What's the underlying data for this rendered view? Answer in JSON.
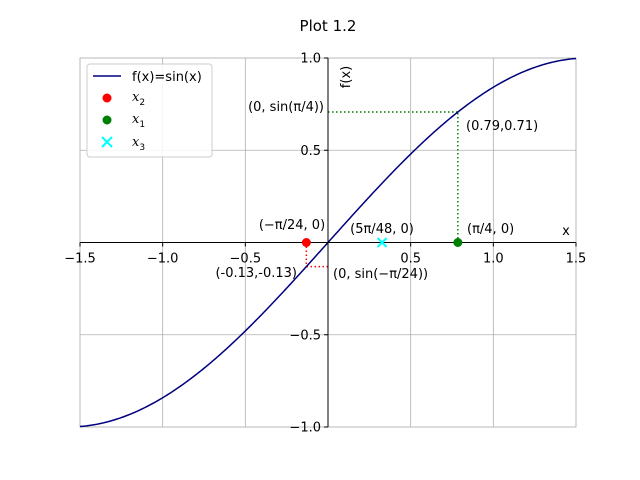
{
  "chart_data": {
    "type": "line",
    "title": "Plot 1.2",
    "xlabel": "x",
    "ylabel": "f(x)",
    "xlim": [
      -1.5,
      1.5
    ],
    "ylim": [
      -1.0,
      1.0
    ],
    "grid": true,
    "spines": "centered",
    "legend_placement": "upper-left",
    "x_ticks": [
      -1.5,
      -1.0,
      -0.5,
      0.5,
      1.0,
      1.5
    ],
    "x_tick_labels": [
      "−1.5",
      "−1.0",
      "−0.5",
      "0.5",
      "1.0",
      "1.5"
    ],
    "y_ticks": [
      -1.0,
      -0.5,
      0.5,
      1.0
    ],
    "y_tick_labels": [
      "−1.0",
      "−0.5",
      "0.5",
      "1.0"
    ],
    "series": [
      {
        "name": "f(x)=sin(x)",
        "function": "sin",
        "color": "#00007f",
        "style": "line"
      }
    ],
    "points": [
      {
        "name": "x_2",
        "x": -0.1309,
        "y": 0,
        "marker": "circle",
        "color": "#ff0000"
      },
      {
        "name": "x_1",
        "x": 0.7854,
        "y": 0,
        "marker": "circle",
        "color": "#007f00"
      },
      {
        "name": "x_3",
        "x": 0.3272,
        "y": 0,
        "marker": "x",
        "color": "#00ffff"
      }
    ],
    "guides": [
      {
        "x": 0.7854,
        "y": 0.7071,
        "color": "#007f00"
      },
      {
        "x": -0.1309,
        "y": -0.1305,
        "color": "#ff0000"
      }
    ],
    "legend": [
      {
        "label": "f(x)=sin(x)",
        "kind": "line",
        "color": "#00007f"
      },
      {
        "label_main": "x",
        "label_sub": "2",
        "kind": "dot",
        "color": "#ff0000"
      },
      {
        "label_main": "x",
        "label_sub": "1",
        "kind": "dot",
        "color": "#007f00"
      },
      {
        "label_main": "x",
        "label_sub": "3",
        "kind": "cross",
        "color": "#00ffff"
      }
    ],
    "annotations": {
      "x2_label": "(−π/24, 0)",
      "x3_label": "(5π/48, 0)",
      "x1_label": "(π/4, 0)",
      "x1_value": "(0.79,0.71)",
      "x1_yaxis": "(0, sin(π/4))",
      "x2_value": "(-0.13,-0.13)",
      "x2_yaxis": "(0, sin(−π/24))"
    }
  }
}
